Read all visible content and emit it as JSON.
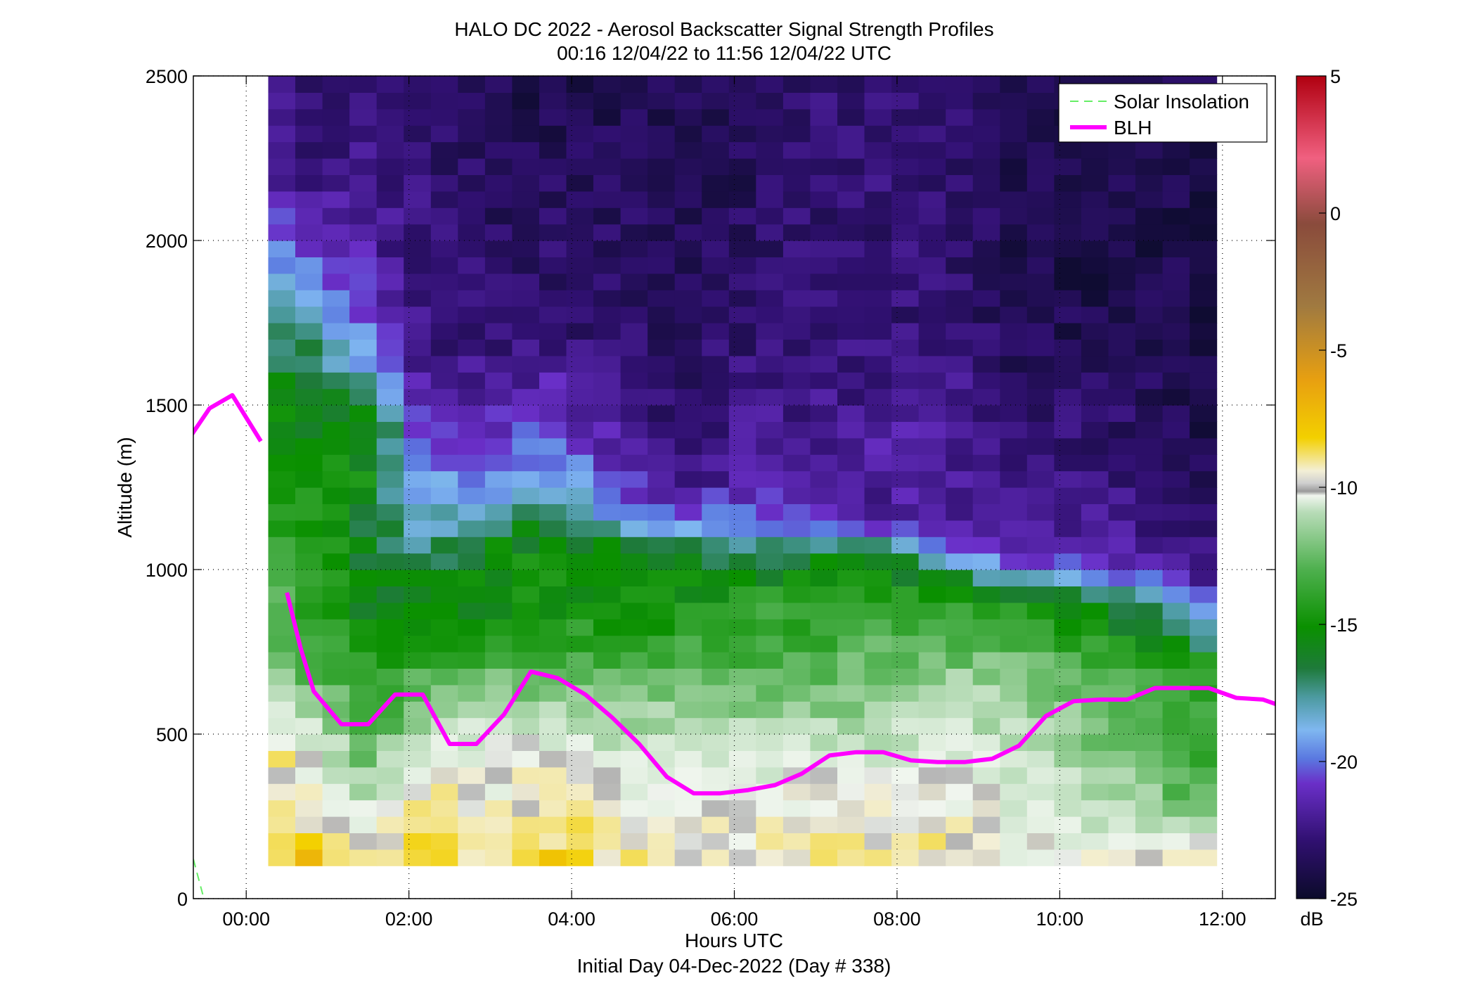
{
  "chart_data": {
    "type": "heatmap",
    "title": "HALO DC 2022 - Aerosol Backscatter Signal Strength Profiles",
    "subtitle": "00:16 12/04/22 to 11:56 12/04/22  UTC",
    "xlabel": "Hours UTC",
    "xlabel_note": "Initial Day 04-Dec-2022 (Day # 338)",
    "ylabel": "Altitude (m)",
    "x_range_hours": [
      -0.65,
      12.65
    ],
    "xticks": [
      0,
      2,
      4,
      6,
      8,
      10,
      12
    ],
    "xtick_labels": [
      "00:00",
      "02:00",
      "04:00",
      "06:00",
      "08:00",
      "10:00",
      "12:00"
    ],
    "ylim": [
      0,
      2500
    ],
    "yticks": [
      0,
      500,
      1000,
      1500,
      2000,
      2500
    ],
    "ytick_labels": [
      "0",
      "500",
      "1000",
      "1500",
      "2000",
      "2500"
    ],
    "grid": true,
    "legend_position": "top-right",
    "legend": [
      "Solar Insolation",
      "BLH"
    ],
    "colorbar": {
      "label": "dB",
      "range": [
        -25,
        5
      ],
      "ticks": [
        5,
        0,
        -5,
        -10,
        -15,
        -20,
        -25
      ],
      "tick_labels": [
        "5",
        "0",
        "-5",
        "-10",
        "-15",
        "-20",
        "-25"
      ]
    },
    "heatmap": {
      "x_start_hours": 0.27,
      "x_end_hours": 11.93,
      "y_bottom_m": 100,
      "y_top_m": 2500,
      "level_points": [
        {
          "x": 0.3,
          "levels": [
            [
              100,
              -8
            ],
            [
              150,
              -8
            ],
            [
              250,
              -8
            ],
            [
              350,
              -9
            ],
            [
              450,
              -9
            ],
            [
              550,
              -11
            ],
            [
              700,
              -13
            ],
            [
              900,
              -14
            ],
            [
              1100,
              -15
            ],
            [
              1400,
              -16
            ],
            [
              1600,
              -17
            ],
            [
              1800,
              -18
            ],
            [
              2000,
              -20
            ],
            [
              2200,
              -22
            ],
            [
              2500,
              -22
            ]
          ]
        },
        {
          "x": 0.9,
          "levels": [
            [
              100,
              -7
            ],
            [
              200,
              -9
            ],
            [
              300,
              -10
            ],
            [
              450,
              -11
            ],
            [
              600,
              -13
            ],
            [
              800,
              -15
            ],
            [
              1000,
              -15
            ],
            [
              1300,
              -16
            ],
            [
              1600,
              -17
            ],
            [
              1800,
              -19
            ],
            [
              2000,
              -21
            ],
            [
              2200,
              -23
            ],
            [
              2500,
              -23
            ]
          ]
        },
        {
          "x": 1.5,
          "levels": [
            [
              100,
              -9
            ],
            [
              250,
              -11
            ],
            [
              400,
              -13
            ],
            [
              600,
              -15
            ],
            [
              800,
              -16
            ],
            [
              1000,
              -17
            ],
            [
              1300,
              -16
            ],
            [
              1450,
              -16
            ],
            [
              1600,
              -19
            ],
            [
              1800,
              -21
            ],
            [
              2000,
              -22
            ],
            [
              2500,
              -23
            ]
          ]
        },
        {
          "x": 2.2,
          "levels": [
            [
              100,
              -8
            ],
            [
              250,
              -9
            ],
            [
              400,
              -10
            ],
            [
              600,
              -13
            ],
            [
              800,
              -16
            ],
            [
              1000,
              -17
            ],
            [
              1200,
              -19
            ],
            [
              1350,
              -20
            ],
            [
              1500,
              -22
            ],
            [
              1800,
              -23
            ],
            [
              2500,
              -23
            ]
          ]
        },
        {
          "x": 3.0,
          "levels": [
            [
              100,
              -9
            ],
            [
              300,
              -10
            ],
            [
              500,
              -11
            ],
            [
              700,
              -14
            ],
            [
              900,
              -16
            ],
            [
              1050,
              -16
            ],
            [
              1200,
              -19
            ],
            [
              1400,
              -21
            ],
            [
              1700,
              -23
            ],
            [
              2500,
              -24
            ]
          ]
        },
        {
          "x": 3.7,
          "levels": [
            [
              100,
              -8
            ],
            [
              300,
              -9
            ],
            [
              500,
              -11
            ],
            [
              700,
              -14
            ],
            [
              900,
              -16
            ],
            [
              1100,
              -16
            ],
            [
              1300,
              -19
            ],
            [
              1500,
              -21
            ],
            [
              1700,
              -23
            ],
            [
              2500,
              -24
            ]
          ]
        },
        {
          "x": 4.5,
          "levels": [
            [
              100,
              -9
            ],
            [
              300,
              -10
            ],
            [
              500,
              -12
            ],
            [
              700,
              -14
            ],
            [
              900,
              -16
            ],
            [
              1050,
              -16
            ],
            [
              1200,
              -20
            ],
            [
              1400,
              -22
            ],
            [
              1700,
              -23
            ],
            [
              2500,
              -24
            ]
          ]
        },
        {
          "x": 5.3,
          "levels": [
            [
              100,
              -10
            ],
            [
              300,
              -10
            ],
            [
              500,
              -12
            ],
            [
              700,
              -14
            ],
            [
              900,
              -16
            ],
            [
              1050,
              -17
            ],
            [
              1150,
              -20
            ],
            [
              1300,
              -23
            ],
            [
              1700,
              -23.5
            ],
            [
              2500,
              -24
            ]
          ]
        },
        {
          "x": 6.2,
          "levels": [
            [
              100,
              -10
            ],
            [
              300,
              -10
            ],
            [
              500,
              -12
            ],
            [
              700,
              -14
            ],
            [
              900,
              -15
            ],
            [
              1050,
              -17
            ],
            [
              1150,
              -20
            ],
            [
              1300,
              -22
            ],
            [
              1700,
              -23
            ],
            [
              2500,
              -24
            ]
          ]
        },
        {
          "x": 7.0,
          "levels": [
            [
              100,
              -9
            ],
            [
              300,
              -10
            ],
            [
              500,
              -12
            ],
            [
              700,
              -14
            ],
            [
              900,
              -15
            ],
            [
              1050,
              -17
            ],
            [
              1150,
              -21
            ],
            [
              1300,
              -22
            ],
            [
              1700,
              -23
            ],
            [
              2500,
              -23
            ]
          ]
        },
        {
          "x": 7.8,
          "levels": [
            [
              100,
              -9
            ],
            [
              300,
              -10
            ],
            [
              500,
              -12
            ],
            [
              700,
              -13
            ],
            [
              900,
              -15
            ],
            [
              1050,
              -17
            ],
            [
              1150,
              -22
            ],
            [
              1400,
              -22
            ],
            [
              1800,
              -23
            ],
            [
              2500,
              -23
            ]
          ]
        },
        {
          "x": 8.6,
          "levels": [
            [
              100,
              -9
            ],
            [
              300,
              -10
            ],
            [
              500,
              -11
            ],
            [
              700,
              -13
            ],
            [
              900,
              -15
            ],
            [
              1000,
              -17
            ],
            [
              1100,
              -22
            ],
            [
              1400,
              -22
            ],
            [
              1800,
              -23
            ],
            [
              2500,
              -23
            ]
          ]
        },
        {
          "x": 9.5,
          "levels": [
            [
              100,
              -10
            ],
            [
              300,
              -11
            ],
            [
              500,
              -12
            ],
            [
              700,
              -13
            ],
            [
              850,
              -15
            ],
            [
              950,
              -17
            ],
            [
              1050,
              -22
            ],
            [
              1400,
              -23
            ],
            [
              1800,
              -24
            ],
            [
              2500,
              -24
            ]
          ]
        },
        {
          "x": 10.4,
          "levels": [
            [
              100,
              -10
            ],
            [
              300,
              -12
            ],
            [
              500,
              -13
            ],
            [
              700,
              -14
            ],
            [
              850,
              -16
            ],
            [
              950,
              -18
            ],
            [
              1050,
              -22
            ],
            [
              1400,
              -23
            ],
            [
              1800,
              -24
            ],
            [
              2500,
              -24
            ]
          ]
        },
        {
          "x": 11.2,
          "levels": [
            [
              100,
              -9
            ],
            [
              300,
              -13
            ],
            [
              500,
              -14
            ],
            [
              700,
              -15
            ],
            [
              800,
              -16
            ],
            [
              900,
              -18
            ],
            [
              1000,
              -22
            ],
            [
              1400,
              -23.5
            ],
            [
              1800,
              -24
            ],
            [
              2500,
              -24
            ]
          ]
        },
        {
          "x": 11.9,
          "levels": [
            [
              100,
              -8
            ],
            [
              300,
              -14
            ],
            [
              500,
              -15
            ],
            [
              700,
              -15
            ],
            [
              800,
              -19
            ],
            [
              900,
              -20
            ],
            [
              1000,
              -23
            ],
            [
              1400,
              -24
            ],
            [
              1800,
              -24
            ],
            [
              2500,
              -24
            ]
          ]
        }
      ]
    },
    "series": [
      {
        "name": "BLH",
        "color": "#ff00ff",
        "x_hours": [
          -0.67,
          -0.45,
          -0.17,
          0.18
        ],
        "y_m": [
          1410,
          1490,
          1530,
          1390
        ]
      },
      {
        "name": "BLH",
        "color": "#ff00ff",
        "x_hours": [
          0.5,
          0.67,
          0.83,
          1.17,
          1.5,
          1.83,
          2.17,
          2.5,
          2.83,
          3.17,
          3.5,
          3.83,
          4.17,
          4.5,
          4.83,
          5.17,
          5.5,
          5.83,
          6.17,
          6.5,
          6.83,
          7.17,
          7.5,
          7.83,
          8.17,
          8.5,
          8.83,
          9.17,
          9.5,
          9.83,
          10.17,
          10.5,
          10.83,
          11.17,
          11.5,
          11.83,
          12.17,
          12.5,
          12.67
        ],
        "y_m": [
          930,
          760,
          630,
          530,
          530,
          620,
          620,
          470,
          470,
          560,
          690,
          670,
          620,
          550,
          470,
          370,
          320,
          320,
          330,
          345,
          380,
          435,
          445,
          445,
          420,
          415,
          415,
          425,
          465,
          555,
          600,
          605,
          605,
          640,
          640,
          640,
          610,
          605,
          590
        ]
      },
      {
        "name": "Solar Insolation",
        "color": "#66ee66",
        "x_hours": [
          -0.65,
          -0.52
        ],
        "y_m": [
          120,
          0
        ]
      }
    ]
  }
}
